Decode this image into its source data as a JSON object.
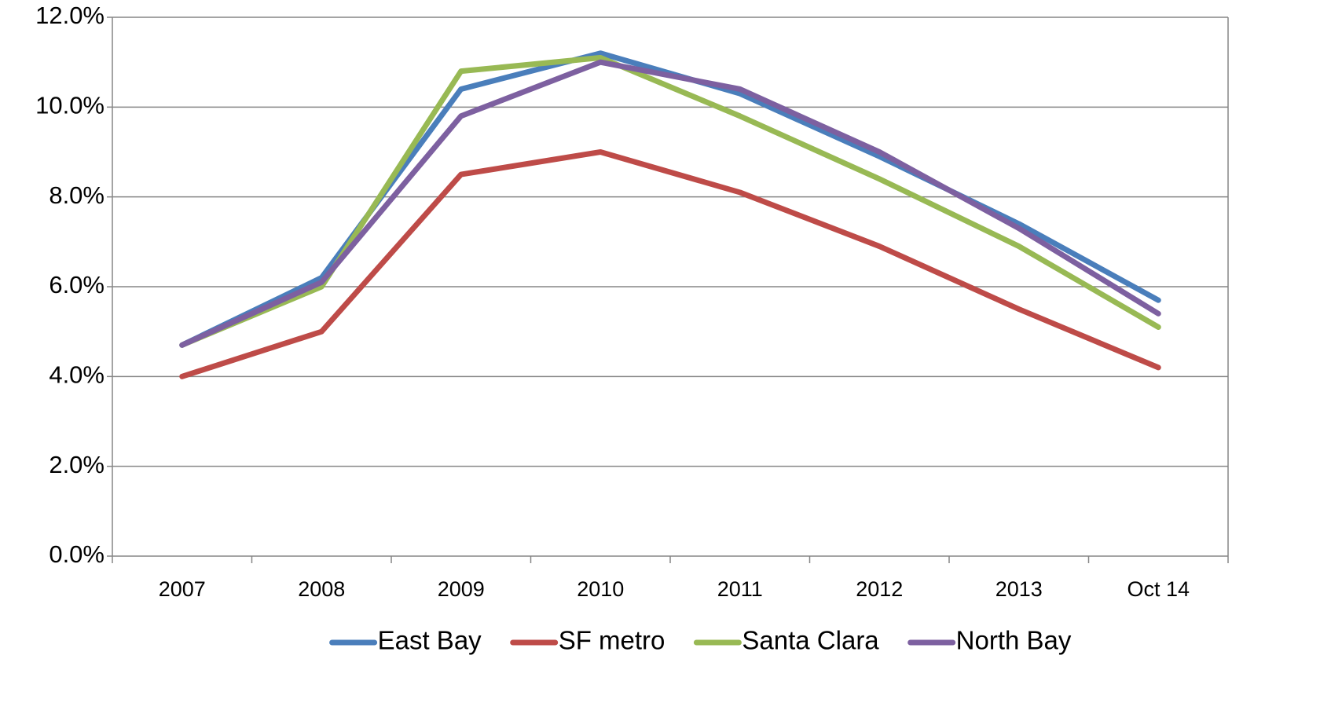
{
  "chart_data": {
    "type": "line",
    "categories": [
      "2007",
      "2008",
      "2009",
      "2010",
      "2011",
      "2012",
      "2013",
      "Oct 14"
    ],
    "series": [
      {
        "name": "East Bay",
        "color": "#4a7ebb",
        "values": [
          4.7,
          6.2,
          10.4,
          11.2,
          10.3,
          8.9,
          7.4,
          5.7
        ]
      },
      {
        "name": "SF metro",
        "color": "#be4b48",
        "values": [
          4.0,
          5.0,
          8.5,
          9.0,
          8.1,
          6.9,
          5.5,
          4.2
        ]
      },
      {
        "name": "Santa Clara",
        "color": "#98b954",
        "values": [
          4.7,
          6.0,
          10.8,
          11.1,
          9.8,
          8.4,
          6.9,
          5.1
        ]
      },
      {
        "name": "North Bay",
        "color": "#7d60a0",
        "values": [
          4.7,
          6.1,
          9.8,
          11.0,
          10.4,
          9.0,
          7.3,
          5.4
        ]
      }
    ],
    "ylim": [
      0,
      12
    ],
    "yticks": [
      {
        "value": 0,
        "label": "0.0%"
      },
      {
        "value": 2,
        "label": "2.0%"
      },
      {
        "value": 4,
        "label": "4.0%"
      },
      {
        "value": 6,
        "label": "6.0%"
      },
      {
        "value": 8,
        "label": "8.0%"
      },
      {
        "value": 10,
        "label": "10.0%"
      },
      {
        "value": 12,
        "label": "12.0%"
      }
    ],
    "grid": true,
    "legend": "bottom"
  }
}
